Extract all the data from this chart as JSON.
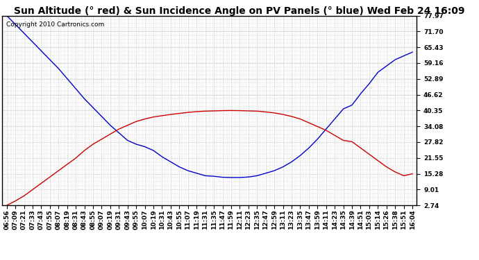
{
  "title": "Sun Altitude (° red) & Sun Incidence Angle on PV Panels (° blue) Wed Feb 24 16:09",
  "copyright": "Copyright 2010 Cartronics.com",
  "y_min": 2.74,
  "y_max": 77.97,
  "y_ticks": [
    2.74,
    9.01,
    15.28,
    21.55,
    27.82,
    34.08,
    40.35,
    46.62,
    52.89,
    59.16,
    65.43,
    71.7,
    77.97
  ],
  "x_labels": [
    "06:56",
    "07:09",
    "07:21",
    "07:33",
    "07:43",
    "07:55",
    "08:07",
    "08:19",
    "08:31",
    "08:43",
    "08:55",
    "09:07",
    "09:19",
    "09:31",
    "09:43",
    "09:55",
    "10:07",
    "10:19",
    "10:31",
    "10:43",
    "10:55",
    "11:07",
    "11:19",
    "11:31",
    "11:35",
    "11:47",
    "11:59",
    "12:11",
    "12:23",
    "12:35",
    "12:47",
    "12:59",
    "13:11",
    "13:23",
    "13:35",
    "13:47",
    "13:59",
    "14:11",
    "14:23",
    "14:35",
    "14:39",
    "14:51",
    "15:03",
    "15:14",
    "15:26",
    "15:38",
    "15:51",
    "16:04"
  ],
  "blue_data": [
    77.97,
    74.5,
    71.0,
    67.5,
    64.0,
    60.5,
    57.0,
    53.0,
    49.0,
    45.0,
    41.5,
    38.0,
    34.5,
    31.5,
    28.5,
    27.0,
    26.0,
    24.5,
    22.0,
    20.0,
    18.0,
    16.5,
    15.5,
    14.5,
    14.3,
    13.9,
    13.8,
    13.8,
    14.0,
    14.5,
    15.5,
    16.5,
    18.0,
    20.0,
    22.5,
    25.5,
    29.0,
    33.0,
    37.0,
    41.0,
    42.5,
    47.0,
    51.0,
    55.5,
    58.0,
    60.5,
    62.0,
    63.5
  ],
  "red_data": [
    2.74,
    4.5,
    6.5,
    9.0,
    11.5,
    14.0,
    16.5,
    19.0,
    21.5,
    24.5,
    27.0,
    29.0,
    31.0,
    33.0,
    34.5,
    36.0,
    37.0,
    37.8,
    38.3,
    38.8,
    39.2,
    39.6,
    39.9,
    40.1,
    40.2,
    40.3,
    40.35,
    40.3,
    40.2,
    40.1,
    39.8,
    39.4,
    38.8,
    38.0,
    37.0,
    35.5,
    34.0,
    32.5,
    30.5,
    28.5,
    28.0,
    25.5,
    23.0,
    20.5,
    18.0,
    16.0,
    14.5,
    15.28
  ],
  "blue_color": "#0000cc",
  "red_color": "#cc0000",
  "bg_color": "#ffffff",
  "grid_color": "#b0b0b0",
  "title_fontsize": 10,
  "copyright_fontsize": 6.5,
  "tick_fontsize": 6.5
}
